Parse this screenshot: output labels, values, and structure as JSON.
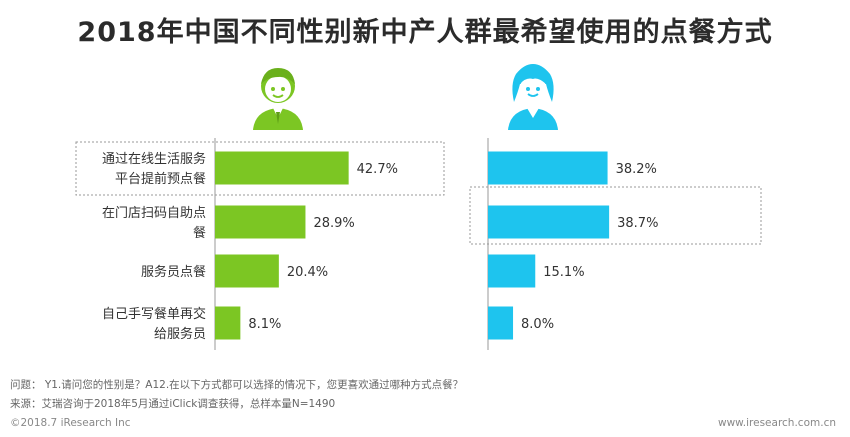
{
  "title": "2018年中国不同性别新中产人群最希望使用的点餐方式",
  "chart_data": [
    {
      "type": "bar",
      "orientation": "horizontal",
      "gender_icon": "male-avatar-icon",
      "color": "#7cc623",
      "categories": [
        "通过在线生活服务平台提前预点餐",
        "在门店扫码自助点餐",
        "服务员点餐",
        "自己手写餐单再交给服务员"
      ],
      "values": [
        42.7,
        28.9,
        20.4,
        8.1
      ],
      "unit": "%",
      "highlight_index": 0
    },
    {
      "type": "bar",
      "orientation": "horizontal",
      "gender_icon": "female-avatar-icon",
      "color": "#1ec4ee",
      "categories": [
        "通过在线生活服务平台提前预点餐",
        "在门店扫码自助点餐",
        "服务员点餐",
        "自己手写餐单再交给服务员"
      ],
      "values": [
        38.2,
        38.7,
        15.1,
        8.0
      ],
      "unit": "%",
      "highlight_index": 1
    }
  ],
  "category_label_lines": [
    [
      "通过在线生活服务",
      "平台提前预点餐"
    ],
    [
      "在门店扫码自助点",
      "餐"
    ],
    [
      "服务员点餐"
    ],
    [
      "自己手写餐单再交",
      "给服务员"
    ]
  ],
  "footer": {
    "question": "问题： Y1.请问您的性别是？A12.在以下方式都可以选择的情况下，您更喜欢通过哪种方式点餐？",
    "source": "来源：艾瑞咨询于2018年5月通过iClick调查获得，总样本量N=1490",
    "copyright": "©2018.7 iResearch  Inc",
    "website": "www.iresearch.com.cn"
  }
}
